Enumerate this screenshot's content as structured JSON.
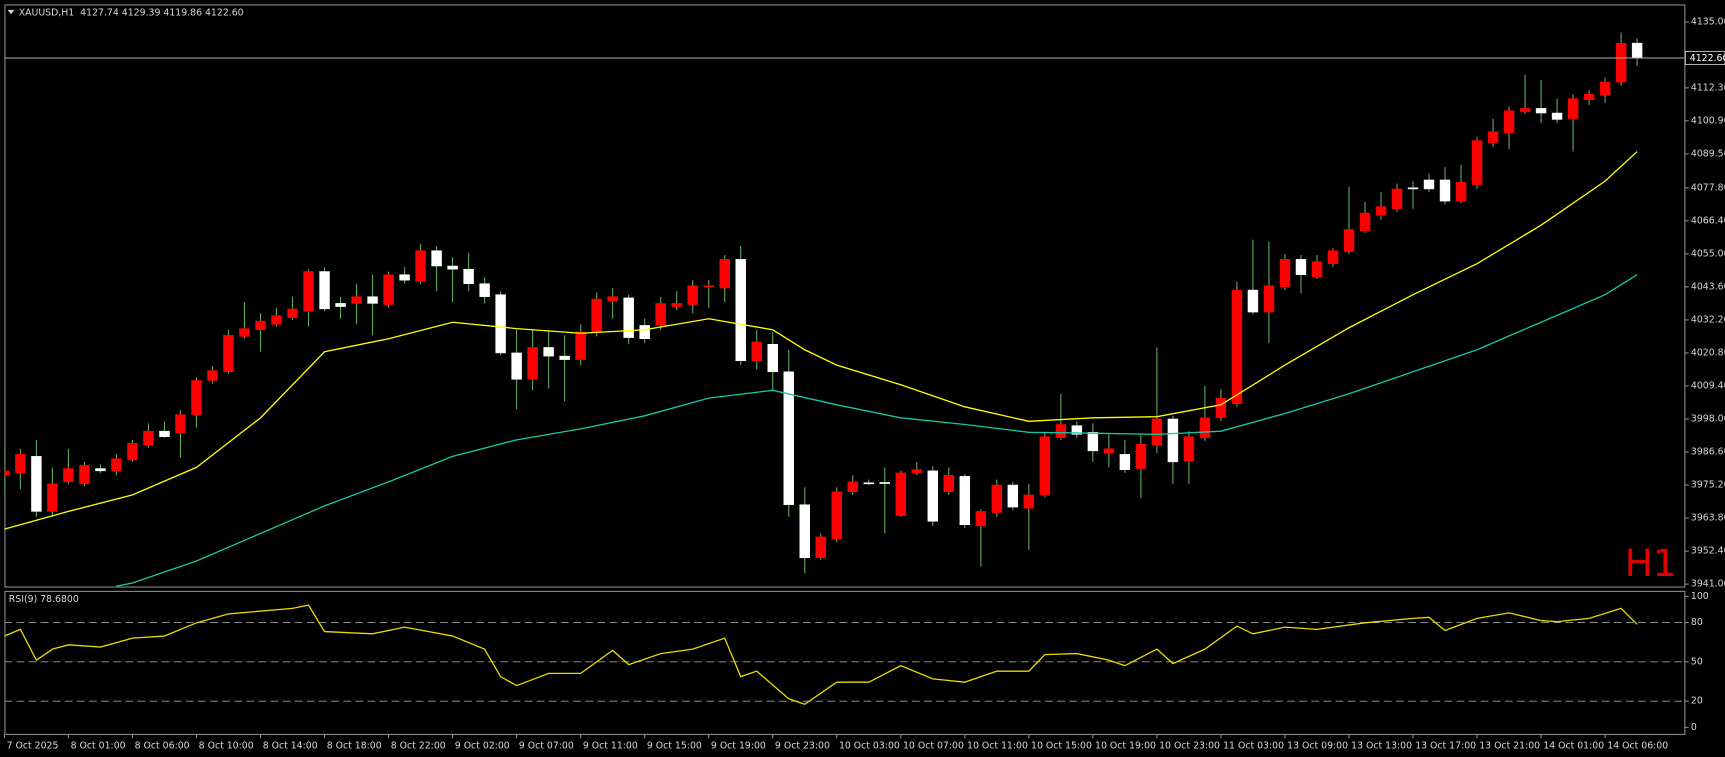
{
  "chart_data": [
    {
      "type": "candlestick",
      "title": "XAUUSD,H1  4127.74 4129.39 4119.86 4122.60",
      "categories": [
        "7 Oct 2025",
        null,
        null,
        null,
        "8 Oct 01:00",
        null,
        null,
        null,
        "8 Oct 06:00",
        null,
        null,
        null,
        "8 Oct 10:00",
        null,
        null,
        null,
        "8 Oct 14:00",
        null,
        null,
        null,
        "8 Oct 18:00",
        null,
        null,
        null,
        "8 Oct 22:00",
        null,
        null,
        null,
        "9 Oct 02:00",
        null,
        null,
        null,
        "9 Oct 07:00",
        null,
        null,
        null,
        "9 Oct 11:00",
        null,
        null,
        null,
        "9 Oct 15:00",
        null,
        null,
        null,
        "9 Oct 19:00",
        null,
        null,
        null,
        "9 Oct 23:00",
        null,
        null,
        null,
        "10 Oct 03:00",
        null,
        null,
        null,
        "10 Oct 07:00",
        null,
        null,
        null,
        "10 Oct 11:00",
        null,
        null,
        null,
        "10 Oct 15:00",
        null,
        null,
        null,
        "10 Oct 19:00",
        null,
        null,
        null,
        "10 Oct 23:00",
        null,
        null,
        null,
        "11 Oct 03:00",
        null,
        null,
        null,
        "13 Oct 09:00",
        null,
        null,
        null,
        "13 Oct 13:00",
        null,
        null,
        null,
        "13 Oct 17:00",
        null,
        null,
        null,
        "13 Oct 21:00",
        null,
        null,
        null,
        "14 Oct 01:00",
        null,
        null,
        null,
        "14 Oct 06:00",
        null,
        null
      ],
      "open": [
        3978.6,
        3979.4,
        3985.1,
        3966.1,
        3976.3,
        3975.6,
        3980.9,
        3980.1,
        3983.9,
        3988.9,
        3993.8,
        3993.1,
        3999.5,
        4011.3,
        4014.3,
        4026.5,
        4028.8,
        4030.7,
        4033.0,
        4035.2,
        4048.9,
        4037.9,
        4037.9,
        4040.2,
        4037.5,
        4047.8,
        4045.5,
        4056.1,
        4050.8,
        4049.7,
        4044.7,
        4040.9,
        4020.8,
        4011.7,
        4022.7,
        4019.7,
        4018.5,
        4028.0,
        4038.7,
        4039.8,
        4030.3,
        4030.3,
        4036.8,
        4037.5,
        4043.6,
        4043.2,
        4053.1,
        4018.1,
        4023.8,
        4014.3,
        3968.4,
        3950.1,
        3956.6,
        3972.9,
        3976.0,
        3976.1,
        3964.6,
        3979.4,
        3980.1,
        3972.9,
        3978.2,
        3961.1,
        3965.7,
        3975.2,
        3967.2,
        3971.8,
        3991.5,
        3995.7,
        3993.4,
        3986.2,
        3985.8,
        3980.9,
        3988.9,
        3998.0,
        3983.6,
        3991.5,
        3998.4,
        4003.3,
        4042.5,
        4034.9,
        4043.6,
        4053.1,
        4047.0,
        4051.6,
        4055.8,
        4063.0,
        4068.3,
        4070.6,
        4077.8,
        4080.5,
        4080.5,
        4073.2,
        4078.9,
        4093.4,
        4096.8,
        4104.0,
        4105.2,
        4103.6,
        4101.7,
        4108.2,
        4109.7,
        4114.3,
        4127.74
      ],
      "high": [
        3987.0,
        3987.7,
        3990.8,
        3981.3,
        3987.7,
        3983.2,
        3982.4,
        3985.8,
        3990.8,
        3996.5,
        3997.2,
        4001.0,
        4012.4,
        4016.2,
        4028.8,
        4038.3,
        4034.5,
        4036.4,
        4040.2,
        4049.7,
        4050.4,
        4040.2,
        4044.7,
        4047.8,
        4048.9,
        4050.4,
        4058.4,
        4057.7,
        4053.9,
        4055.4,
        4047.0,
        4042.1,
        4028.8,
        4028.8,
        4028.8,
        4026.9,
        4030.7,
        4041.7,
        4043.2,
        4040.9,
        4032.6,
        4040.2,
        4042.1,
        4045.9,
        4045.9,
        4054.6,
        4057.7,
        4028.8,
        4028.0,
        4021.9,
        3974.4,
        3958.5,
        3974.4,
        3978.6,
        3977.1,
        3981.3,
        3980.1,
        3983.2,
        3981.7,
        3981.3,
        3979.0,
        3966.8,
        3977.1,
        3976.3,
        3975.6,
        3993.1,
        4006.7,
        3997.2,
        3996.5,
        3992.7,
        3990.8,
        3992.7,
        4022.7,
        3999.1,
        3993.8,
        4009.4,
        4008.3,
        4045.5,
        4059.9,
        4059.2,
        4055.0,
        4054.6,
        4054.6,
        4056.9,
        4078.2,
        4072.9,
        4076.3,
        4079.3,
        4080.1,
        4082.7,
        4085.0,
        4085.8,
        4095.3,
        4101.7,
        4105.9,
        4116.9,
        4115.0,
        4108.6,
        4110.1,
        4111.6,
        4115.8,
        4131.4,
        4129.39
      ],
      "low": [
        3971.8,
        3973.7,
        3964.2,
        3964.2,
        3975.6,
        3974.8,
        3979.4,
        3978.6,
        3983.2,
        3988.1,
        3991.5,
        3984.7,
        3995.0,
        4010.2,
        4013.6,
        4025.7,
        4021.2,
        4029.9,
        4032.2,
        4029.9,
        4035.2,
        4032.6,
        4030.7,
        4026.9,
        4036.4,
        4044.7,
        4044.7,
        4042.1,
        4038.3,
        4042.1,
        4037.9,
        4020.0,
        4001.4,
        4007.9,
        4008.6,
        4004.1,
        4016.6,
        4026.5,
        4032.6,
        4023.8,
        4024.2,
        4028.8,
        4035.6,
        4034.5,
        4036.4,
        4038.3,
        4016.6,
        4015.1,
        4007.9,
        3964.2,
        3944.8,
        3949.4,
        3955.4,
        3971.8,
        3975.2,
        3958.5,
        3964.2,
        3978.6,
        3961.1,
        3971.8,
        3960.4,
        3947.1,
        3964.2,
        3966.5,
        3952.8,
        3971.0,
        3990.8,
        3991.5,
        3983.2,
        3981.3,
        3979.4,
        3970.6,
        3986.2,
        3975.6,
        3975.6,
        3990.4,
        3997.2,
        4002.2,
        4034.1,
        4024.2,
        4042.5,
        4041.3,
        4046.3,
        4050.4,
        4055.0,
        4062.2,
        4066.8,
        4069.4,
        4070.6,
        4076.3,
        4072.1,
        4072.5,
        4077.4,
        4091.9,
        4091.1,
        4103.3,
        4100.2,
        4100.2,
        4090.3,
        4106.3,
        4107.1,
        4113.1,
        4119.86
      ],
      "close": [
        3980.1,
        3985.8,
        3966.1,
        3975.6,
        3980.9,
        3982.0,
        3980.1,
        3984.3,
        3989.6,
        3993.8,
        3991.9,
        3999.5,
        4011.3,
        4014.7,
        4026.9,
        4029.2,
        4031.8,
        4033.7,
        4036.0,
        4048.9,
        4036.0,
        4036.8,
        4040.2,
        4037.9,
        4047.8,
        4045.9,
        4056.1,
        4050.8,
        4049.7,
        4044.7,
        4040.2,
        4020.8,
        4011.7,
        4022.7,
        4019.7,
        4018.5,
        4028.0,
        4039.4,
        4040.2,
        4026.1,
        4025.7,
        4037.9,
        4037.9,
        4044.0,
        4044.0,
        4053.1,
        4018.1,
        4024.6,
        4014.3,
        3968.4,
        3950.1,
        3957.3,
        3972.9,
        3976.3,
        3975.8,
        3975.9,
        3979.4,
        3980.5,
        3962.7,
        3978.6,
        3961.5,
        3966.1,
        3975.2,
        3967.6,
        3971.8,
        3991.9,
        3996.1,
        3992.7,
        3987.0,
        3987.7,
        3980.5,
        3989.3,
        3998.0,
        3983.2,
        3991.9,
        3998.4,
        4005.2,
        4042.5,
        4034.9,
        4044.0,
        4053.1,
        4047.8,
        4052.3,
        4056.1,
        4063.4,
        4069.1,
        4071.3,
        4077.4,
        4077.4,
        4077.4,
        4073.2,
        4079.7,
        4094.1,
        4097.2,
        4104.4,
        4105.2,
        4103.6,
        4101.4,
        4108.6,
        4110.1,
        4114.3,
        4127.7,
        4122.6
      ],
      "up_color": "#ff0000",
      "down_color": "#ffffff",
      "wick_color": "#5fa85f",
      "series": [
        {
          "color": "#ffff00",
          "x": [
            0,
            4,
            8,
            12,
            16,
            20,
            24,
            28,
            32,
            36,
            40,
            44,
            48,
            50,
            52,
            56,
            60,
            64,
            68,
            72,
            76,
            80,
            84,
            88,
            92,
            96,
            100,
            102
          ],
          "values": [
            3960.0,
            3966.1,
            3971.8,
            3981.3,
            3998.4,
            4021.2,
            4025.7,
            4031.4,
            4029.2,
            4027.6,
            4028.8,
            4032.6,
            4028.8,
            4021.9,
            4016.6,
            4009.8,
            4002.2,
            3997.2,
            3998.4,
            3998.8,
            4002.9,
            4016.6,
            4029.5,
            4040.9,
            4051.6,
            4064.9,
            4080.1,
            4090.3
          ]
        },
        {
          "color": "#18c8a4",
          "x": [
            7,
            8,
            12,
            16,
            20,
            24,
            28,
            32,
            36,
            40,
            44,
            48,
            52,
            56,
            60,
            64,
            68,
            72,
            76,
            80,
            84,
            88,
            92,
            96,
            100,
            102
          ],
          "values": [
            3940.3,
            3941.4,
            3949.0,
            3958.5,
            3968.0,
            3976.3,
            3985.1,
            3990.8,
            3994.6,
            3999.1,
            4005.2,
            4007.9,
            4002.9,
            3998.4,
            3996.1,
            3993.4,
            3993.1,
            3992.7,
            3993.8,
            3999.9,
            4006.7,
            4014.3,
            4021.9,
            4031.4,
            4040.9,
            4047.8
          ]
        }
      ],
      "ylim": [
        3940.2,
        4141.1
      ],
      "yticks": [
        {
          "value": 4135,
          "label": "4135.00"
        },
        {
          "value": 4112.3,
          "label": "4112.30"
        },
        {
          "value": 4100.9,
          "label": "4100.90"
        },
        {
          "value": 4089.5,
          "label": "4089.50"
        },
        {
          "value": 4077.8,
          "label": "4077.80"
        },
        {
          "value": 4066.4,
          "label": "4066.40"
        },
        {
          "value": 4055,
          "label": "4055.00"
        },
        {
          "value": 4043.6,
          "label": "4043.60"
        },
        {
          "value": 4032.2,
          "label": "4032.20"
        },
        {
          "value": 4020.8,
          "label": "4020.80"
        },
        {
          "value": 4009.4,
          "label": "4009.40"
        },
        {
          "value": 3998,
          "label": "3998.00"
        },
        {
          "value": 3986.6,
          "label": "3986.60"
        },
        {
          "value": 3975.2,
          "label": "3975.20"
        },
        {
          "value": 3963.8,
          "label": "3963.80"
        },
        {
          "value": 3952.4,
          "label": "3952.40"
        },
        {
          "value": 3941,
          "label": "3941.00"
        }
      ],
      "current_price": {
        "value": 4122.6,
        "label": "4122.60"
      },
      "watermark": "H1"
    },
    {
      "type": "line",
      "title": "RSI(9) 78.6800",
      "series": [
        {
          "color": "#e8d800",
          "x": [
            0,
            1,
            2,
            3,
            4,
            6,
            8,
            10,
            12,
            14,
            18,
            19,
            20,
            23,
            25,
            28,
            30,
            31,
            32,
            34,
            36,
            38,
            39,
            41,
            43,
            45,
            46,
            47,
            49,
            50,
            52,
            54,
            56,
            58,
            60,
            62,
            64,
            65,
            67,
            69,
            70,
            72,
            73,
            75,
            77,
            78,
            80,
            82,
            85,
            88,
            89,
            90,
            92,
            94,
            96,
            97,
            99,
            101,
            102
          ],
          "values": [
            69.7,
            74.8,
            51.3,
            59.7,
            63.0,
            61.3,
            68.1,
            69.7,
            79.8,
            86.6,
            90.8,
            93.3,
            73.1,
            71.4,
            76.5,
            69.7,
            59.7,
            38.7,
            31.9,
            41.2,
            41.2,
            58.8,
            47.9,
            56.3,
            59.7,
            68.1,
            38.7,
            42.9,
            21.8,
            17.6,
            34.5,
            34.5,
            47.1,
            37.0,
            34.5,
            42.9,
            42.9,
            55.5,
            56.3,
            51.3,
            47.1,
            59.7,
            48.7,
            59.7,
            77.3,
            71.4,
            76.5,
            74.8,
            79.8,
            83.2,
            84.0,
            73.9,
            83.2,
            87.4,
            81.5,
            80.7,
            83.2,
            90.8,
            78.68
          ]
        }
      ],
      "ylim": [
        -5.0,
        104.2
      ],
      "yticks": [
        100,
        80,
        50,
        20,
        0
      ],
      "levels": [
        80,
        50,
        20
      ]
    }
  ]
}
